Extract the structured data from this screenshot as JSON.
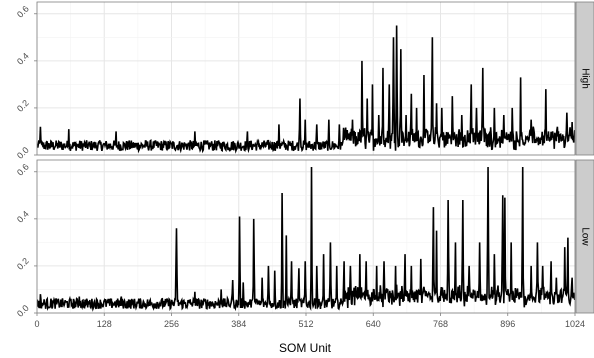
{
  "chart_data": {
    "type": "line",
    "xlabel": "SOM Unit",
    "ylabel": "",
    "xlim": [
      0,
      1024
    ],
    "x_ticks": [
      0,
      128,
      256,
      384,
      512,
      640,
      768,
      896,
      1024
    ],
    "x_tick_labels": [
      "0",
      "128",
      "256",
      "384",
      "512",
      "640",
      "768",
      "896",
      "1024"
    ],
    "grid": true,
    "panels": [
      {
        "name": "High",
        "strip_label": "High",
        "ylim": [
          0,
          0.65
        ],
        "y_ticks": [
          0.0,
          0.2,
          0.4,
          0.6
        ],
        "y_tick_labels": [
          "0.0",
          "0.2",
          "0.4",
          "0.6"
        ],
        "baseline": 0.05,
        "peaks": [
          {
            "x": 6,
            "y": 0.12
          },
          {
            "x": 60,
            "y": 0.11
          },
          {
            "x": 150,
            "y": 0.1
          },
          {
            "x": 300,
            "y": 0.1
          },
          {
            "x": 400,
            "y": 0.1
          },
          {
            "x": 460,
            "y": 0.13
          },
          {
            "x": 500,
            "y": 0.24
          },
          {
            "x": 510,
            "y": 0.15
          },
          {
            "x": 532,
            "y": 0.13
          },
          {
            "x": 555,
            "y": 0.15
          },
          {
            "x": 575,
            "y": 0.13
          },
          {
            "x": 600,
            "y": 0.15
          },
          {
            "x": 618,
            "y": 0.4
          },
          {
            "x": 628,
            "y": 0.24
          },
          {
            "x": 638,
            "y": 0.3
          },
          {
            "x": 650,
            "y": 0.17
          },
          {
            "x": 658,
            "y": 0.37
          },
          {
            "x": 670,
            "y": 0.3
          },
          {
            "x": 678,
            "y": 0.5
          },
          {
            "x": 684,
            "y": 0.55
          },
          {
            "x": 692,
            "y": 0.45
          },
          {
            "x": 702,
            "y": 0.17
          },
          {
            "x": 712,
            "y": 0.26
          },
          {
            "x": 722,
            "y": 0.2
          },
          {
            "x": 736,
            "y": 0.34
          },
          {
            "x": 752,
            "y": 0.5
          },
          {
            "x": 760,
            "y": 0.22
          },
          {
            "x": 770,
            "y": 0.2
          },
          {
            "x": 790,
            "y": 0.25
          },
          {
            "x": 808,
            "y": 0.17
          },
          {
            "x": 826,
            "y": 0.3
          },
          {
            "x": 836,
            "y": 0.2
          },
          {
            "x": 848,
            "y": 0.37
          },
          {
            "x": 870,
            "y": 0.2
          },
          {
            "x": 888,
            "y": 0.17
          },
          {
            "x": 904,
            "y": 0.2
          },
          {
            "x": 920,
            "y": 0.33
          },
          {
            "x": 940,
            "y": 0.15
          },
          {
            "x": 968,
            "y": 0.28
          },
          {
            "x": 990,
            "y": 0.12
          },
          {
            "x": 1008,
            "y": 0.18
          },
          {
            "x": 1018,
            "y": 0.14
          }
        ]
      },
      {
        "name": "Low",
        "strip_label": "Low",
        "ylim": [
          0,
          0.65
        ],
        "y_ticks": [
          0.0,
          0.2,
          0.4,
          0.6
        ],
        "y_tick_labels": [
          "0.0",
          "0.2",
          "0.4",
          "0.6"
        ],
        "baseline": 0.05,
        "peaks": [
          {
            "x": 6,
            "y": 0.08
          },
          {
            "x": 80,
            "y": 0.07
          },
          {
            "x": 160,
            "y": 0.07
          },
          {
            "x": 265,
            "y": 0.36
          },
          {
            "x": 300,
            "y": 0.09
          },
          {
            "x": 350,
            "y": 0.1
          },
          {
            "x": 372,
            "y": 0.14
          },
          {
            "x": 385,
            "y": 0.41
          },
          {
            "x": 392,
            "y": 0.13
          },
          {
            "x": 412,
            "y": 0.4
          },
          {
            "x": 428,
            "y": 0.15
          },
          {
            "x": 440,
            "y": 0.2
          },
          {
            "x": 452,
            "y": 0.18
          },
          {
            "x": 466,
            "y": 0.51
          },
          {
            "x": 474,
            "y": 0.33
          },
          {
            "x": 484,
            "y": 0.22
          },
          {
            "x": 498,
            "y": 0.19
          },
          {
            "x": 510,
            "y": 0.22
          },
          {
            "x": 522,
            "y": 0.62
          },
          {
            "x": 532,
            "y": 0.2
          },
          {
            "x": 545,
            "y": 0.25
          },
          {
            "x": 558,
            "y": 0.3
          },
          {
            "x": 570,
            "y": 0.2
          },
          {
            "x": 584,
            "y": 0.22
          },
          {
            "x": 596,
            "y": 0.2
          },
          {
            "x": 614,
            "y": 0.25
          },
          {
            "x": 626,
            "y": 0.22
          },
          {
            "x": 646,
            "y": 0.2
          },
          {
            "x": 660,
            "y": 0.22
          },
          {
            "x": 682,
            "y": 0.2
          },
          {
            "x": 700,
            "y": 0.25
          },
          {
            "x": 712,
            "y": 0.2
          },
          {
            "x": 730,
            "y": 0.23
          },
          {
            "x": 754,
            "y": 0.45
          },
          {
            "x": 760,
            "y": 0.35
          },
          {
            "x": 782,
            "y": 0.48
          },
          {
            "x": 796,
            "y": 0.3
          },
          {
            "x": 810,
            "y": 0.48
          },
          {
            "x": 822,
            "y": 0.2
          },
          {
            "x": 842,
            "y": 0.3
          },
          {
            "x": 858,
            "y": 0.62
          },
          {
            "x": 870,
            "y": 0.25
          },
          {
            "x": 886,
            "y": 0.5
          },
          {
            "x": 890,
            "y": 0.49
          },
          {
            "x": 902,
            "y": 0.3
          },
          {
            "x": 924,
            "y": 0.62
          },
          {
            "x": 940,
            "y": 0.2
          },
          {
            "x": 952,
            "y": 0.3
          },
          {
            "x": 962,
            "y": 0.2
          },
          {
            "x": 978,
            "y": 0.22
          },
          {
            "x": 988,
            "y": 0.15
          },
          {
            "x": 1004,
            "y": 0.28
          },
          {
            "x": 1010,
            "y": 0.32
          },
          {
            "x": 1018,
            "y": 0.15
          }
        ]
      }
    ]
  }
}
